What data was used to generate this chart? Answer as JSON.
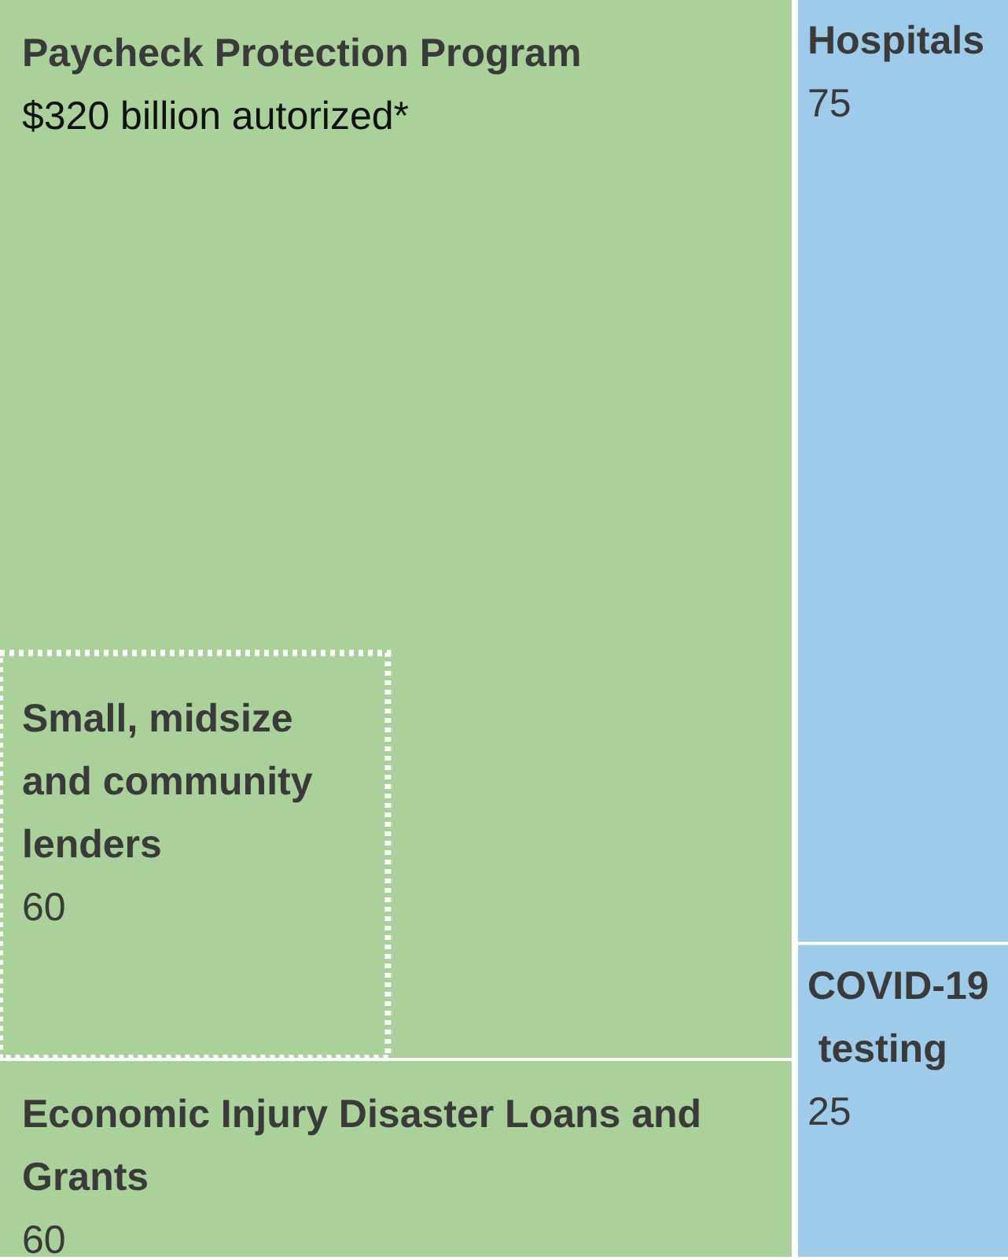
{
  "chart_data": {
    "type": "other",
    "categories": [
      "Paycheck Protection Program",
      "Small, midsize and community lenders",
      "Economic Injury Disaster Loans and Grants",
      "Hospitals",
      "COVID-19 testing"
    ],
    "values": [
      320,
      60,
      60,
      75,
      25
    ],
    "value_labels": [
      "$320 billion autorized*",
      "60",
      "60",
      "75",
      "25"
    ],
    "colors": [
      "#abd19a",
      "#abd19a",
      "#abd19a",
      "#9fcbea",
      "#9fcbea"
    ]
  }
}
